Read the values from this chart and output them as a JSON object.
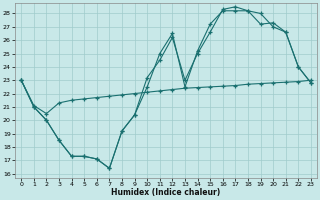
{
  "background_color": "#c8e8e8",
  "grid_color": "#a0cccc",
  "line_color": "#1a7070",
  "xlabel": "Humidex (Indice chaleur)",
  "xlim": [
    -0.5,
    23.5
  ],
  "ylim_min": 15.7,
  "ylim_max": 28.8,
  "yticks": [
    16,
    17,
    18,
    19,
    20,
    21,
    22,
    23,
    24,
    25,
    26,
    27,
    28
  ],
  "xticks": [
    0,
    1,
    2,
    3,
    4,
    5,
    6,
    7,
    8,
    9,
    10,
    11,
    12,
    13,
    14,
    15,
    16,
    17,
    18,
    19,
    20,
    21,
    22,
    23
  ],
  "series1_x": [
    0,
    1,
    2,
    3,
    4,
    5,
    6,
    7,
    8,
    9,
    10,
    11,
    12,
    13,
    14,
    15,
    16,
    17,
    18,
    19,
    20,
    21,
    22,
    23
  ],
  "series1_y": [
    23,
    21,
    20,
    18.5,
    17.3,
    17.3,
    17.1,
    16.4,
    19.2,
    20.4,
    22.5,
    25.0,
    26.5,
    22.5,
    25.2,
    27.2,
    28.2,
    28.2,
    28.2,
    27.2,
    27.3,
    26.6,
    24.0,
    22.8
  ],
  "series2_x": [
    0,
    1,
    2,
    3,
    4,
    5,
    6,
    7,
    8,
    9,
    10,
    11,
    12,
    13,
    14,
    15,
    16,
    17,
    18,
    19,
    20,
    21,
    22,
    23
  ],
  "series2_y": [
    23,
    21,
    20,
    18.5,
    17.3,
    17.3,
    17.1,
    16.4,
    19.2,
    20.4,
    23.2,
    24.5,
    26.2,
    23.0,
    25.0,
    26.6,
    28.3,
    28.5,
    28.2,
    28.0,
    27.0,
    26.6,
    24.0,
    22.8
  ],
  "series3_x": [
    0,
    1,
    2,
    3,
    4,
    5,
    6,
    7,
    8,
    9,
    10,
    11,
    12,
    13,
    14,
    15,
    16,
    17,
    18,
    19,
    20,
    21,
    22,
    23
  ],
  "series3_y": [
    23.0,
    21.1,
    20.5,
    21.3,
    21.5,
    21.6,
    21.7,
    21.8,
    21.9,
    22.0,
    22.1,
    22.2,
    22.3,
    22.4,
    22.45,
    22.5,
    22.55,
    22.6,
    22.7,
    22.75,
    22.8,
    22.85,
    22.9,
    23.0
  ]
}
